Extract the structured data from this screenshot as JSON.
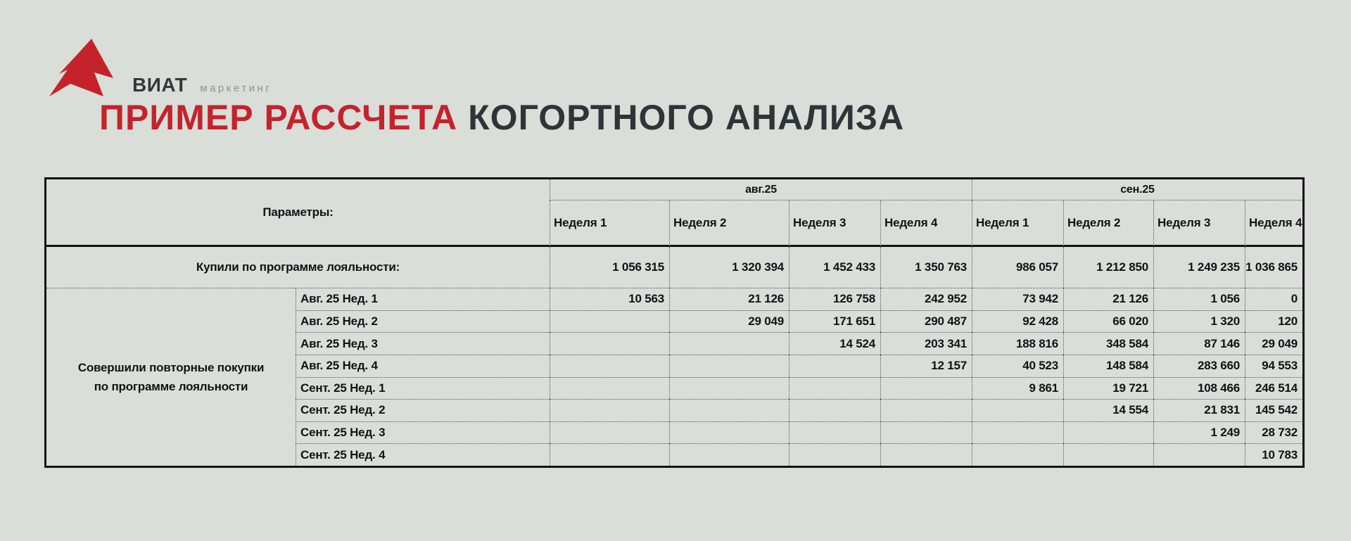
{
  "logo": {
    "brand": "ВИАТ",
    "suffix": "маркетинг"
  },
  "title": {
    "highlight": "ПРИМЕР РАССЧЕТА",
    "rest": "КОГОРТНОГО АНАЛИЗА"
  },
  "table": {
    "params_header": "Параметры:",
    "month_groups": [
      {
        "label": "авг.25"
      },
      {
        "label": "сен.25"
      }
    ],
    "week_headers": [
      "Неделя 1",
      "Неделя 2",
      "Неделя 3",
      "Неделя 4",
      "Неделя 1",
      "Неделя 2",
      "Неделя 3",
      "Неделя 4"
    ],
    "purchases_row": {
      "label": "Купили по программе лояльности:",
      "values": [
        "1 056 315",
        "1 320 394",
        "1 452 433",
        "1 350 763",
        "986 057",
        "1 212 850",
        "1 249 235",
        "1 036 865"
      ]
    },
    "repeat_label": "Совершили повторные покупки по программе лояльности",
    "cohorts": [
      {
        "label": "Авг. 25 Нед. 1",
        "values": [
          "10 563",
          "21 126",
          "126 758",
          "242 952",
          "73 942",
          "21 126",
          "1 056",
          "0"
        ]
      },
      {
        "label": "Авг. 25 Нед. 2",
        "values": [
          "",
          "29 049",
          "171 651",
          "290 487",
          "92 428",
          "66 020",
          "1 320",
          "120"
        ]
      },
      {
        "label": "Авг. 25 Нед. 3",
        "values": [
          "",
          "",
          "14 524",
          "203 341",
          "188 816",
          "348 584",
          "87 146",
          "29 049"
        ]
      },
      {
        "label": "Авг. 25 Нед. 4",
        "values": [
          "",
          "",
          "",
          "12 157",
          "40 523",
          "148 584",
          "283 660",
          "94 553"
        ]
      },
      {
        "label": "Сент. 25 Нед. 1",
        "values": [
          "",
          "",
          "",
          "",
          "9 861",
          "19 721",
          "108 466",
          "246 514"
        ]
      },
      {
        "label": "Сент. 25 Нед. 2",
        "values": [
          "",
          "",
          "",
          "",
          "",
          "14 554",
          "21 831",
          "145 542"
        ]
      },
      {
        "label": "Сент. 25 Нед. 3",
        "values": [
          "",
          "",
          "",
          "",
          "",
          "",
          "1 249",
          "28 732"
        ]
      },
      {
        "label": "Сент. 25 Нед. 4",
        "values": [
          "",
          "",
          "",
          "",
          "",
          "",
          "",
          "10 783"
        ]
      }
    ]
  },
  "colors": {
    "background": "#d9ded9",
    "accent_red": "#c4232b",
    "text_dark": "#2f3439",
    "table_text": "#101214",
    "logo_gray": "#8d9194",
    "border_black": "#121212",
    "dotted_border": "#54575a"
  }
}
